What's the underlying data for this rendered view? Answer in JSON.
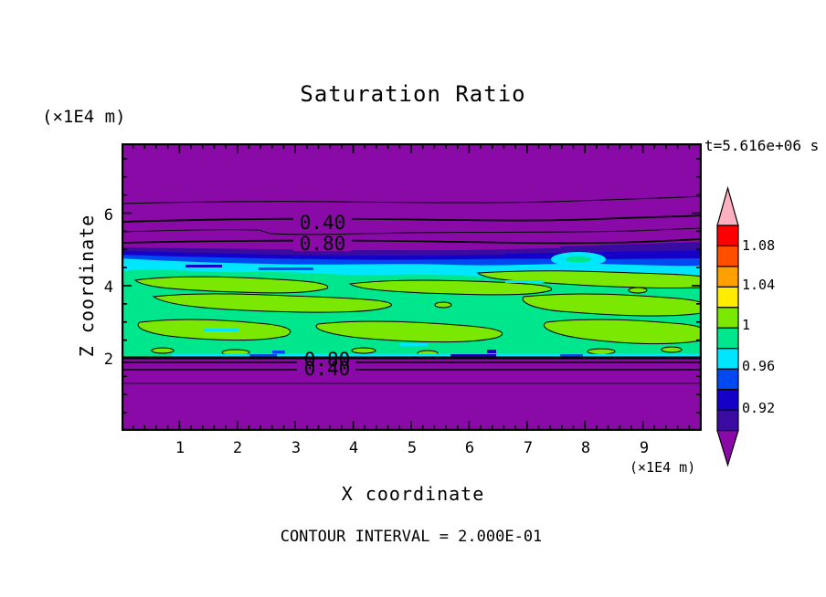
{
  "title": "Saturation Ratio",
  "annotations": {
    "y_axis_units": "(×1E4 m)",
    "x_axis_units": "(×1E4 m)",
    "timestamp": "t=5.616e+06 s",
    "footer": "CONTOUR INTERVAL = 2.000E-01"
  },
  "axes": {
    "x_label": "X coordinate",
    "y_label": "Z coordinate",
    "x_tick_labels": [
      "1",
      "2",
      "3",
      "4",
      "5",
      "6",
      "7",
      "8",
      "9"
    ],
    "y_tick_labels": [
      "6",
      "4",
      "2"
    ]
  },
  "plot_contour_labels": {
    "upper_040": "0.40",
    "upper_080": "0.80",
    "lower_080": "0.80",
    "lower_040": "0.40"
  },
  "colorbar": {
    "labels": [
      "1.08",
      "1.04",
      "1",
      "0.96",
      "0.92"
    ],
    "segments_top_to_bottom": [
      "red",
      "orange_red",
      "orange",
      "yellow",
      "chartreuse",
      "spring_green",
      "cyan",
      "blue",
      "dark_blue",
      "indigo"
    ],
    "over_arrow_color": "pink",
    "under_arrow_color": "purple"
  },
  "palette": {
    "purple": "#8A0AA8",
    "indigo": "#3A0BA0",
    "dark_blue": "#1500C8",
    "blue": "#0048F0",
    "cyan": "#00E6FF",
    "spring_green": "#00E68C",
    "chartreuse": "#7AE800",
    "yellow": "#FFEC00",
    "orange": "#FFA000",
    "orange_red": "#FF5000",
    "red": "#FF0000",
    "pink": "#FFB0C0"
  },
  "chart_data": {
    "type": "heatmap",
    "variant": "filled-contour",
    "title": "Saturation Ratio",
    "xlabel": "X coordinate (×1E4 m)",
    "ylabel": "Z coordinate (×1E4 m)",
    "xlim": [
      0,
      10
    ],
    "ylim": [
      0,
      8
    ],
    "x_ticks": [
      1,
      2,
      3,
      4,
      5,
      6,
      7,
      8,
      9
    ],
    "y_ticks": [
      2,
      4,
      6
    ],
    "time_annotation": "t=5.616e+06 s",
    "contour_interval": 0.2,
    "colorbar_tick_labels": [
      1.08,
      1.04,
      1,
      0.96,
      0.92
    ],
    "colorbar_level_step": 0.02,
    "colorbar_range": [
      0.9,
      1.1
    ],
    "labeled_contours": [
      {
        "value": 0.4,
        "z_approx": 5.9,
        "region": "upper purple zone"
      },
      {
        "value": 0.8,
        "z_approx": 5.2,
        "region": "upper purple zone"
      },
      {
        "value": 0.8,
        "z_approx": 1.9,
        "region": "lower purple zone"
      },
      {
        "value": 0.4,
        "z_approx": 1.7,
        "region": "lower purple zone"
      }
    ],
    "field_regions": [
      {
        "z_range": [
          5.2,
          8.0
        ],
        "saturation": "< 0.8, decreasing upward (contours 0.20/0.40/0.60/0.80)",
        "fill": "purple"
      },
      {
        "z_range": [
          4.6,
          5.2
        ],
        "saturation": "0.90 - 0.96 transition band",
        "fill": "indigo / dark_blue / blue"
      },
      {
        "z_range": [
          4.4,
          4.9
        ],
        "saturation": "0.96 - 0.98 band",
        "fill": "cyan"
      },
      {
        "z_range": [
          2.05,
          4.5
        ],
        "saturation": "0.98 - 1.02 turbulent cloud layer, mottled patches around 1.0",
        "fill": "spring_green with chartreuse patches"
      },
      {
        "z_range": [
          0.0,
          2.05
        ],
        "saturation": "< 0.8, sharp drop below z=2 (contours 0.80/0.60/0.40/0.20)",
        "fill": "purple"
      }
    ],
    "grid": false,
    "legend_position": "vertical colorbar at right with over/under arrow endcaps"
  }
}
